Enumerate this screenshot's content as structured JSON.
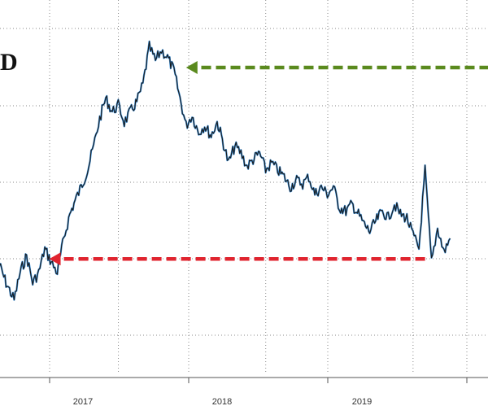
{
  "chart_data": {
    "type": "line",
    "title_fragment": "D",
    "xlabel": "",
    "ylabel": "",
    "x_range": [
      "2016-09",
      "2020-01"
    ],
    "x_tick_labels": [
      "2017",
      "2018",
      "2019"
    ],
    "x_tick_dates": [
      "2017-01-01",
      "2018-01-01",
      "2019-01-01"
    ],
    "grid": true,
    "y_scale": "unlabeled",
    "series": [
      {
        "color": "#1a1a1a",
        "highlight_color": "#3a8fd9",
        "points": [
          [
            "2016-09-01",
            0.28
          ],
          [
            "2016-09-20",
            0.22
          ],
          [
            "2016-10-10",
            0.17
          ],
          [
            "2016-10-25",
            0.25
          ],
          [
            "2016-11-10",
            0.3
          ],
          [
            "2016-11-25",
            0.22
          ],
          [
            "2016-12-10",
            0.25
          ],
          [
            "2016-12-25",
            0.32
          ],
          [
            "2017-01-10",
            0.28
          ],
          [
            "2017-01-25",
            0.25
          ],
          [
            "2017-02-10",
            0.35
          ],
          [
            "2017-02-25",
            0.42
          ],
          [
            "2017-03-10",
            0.46
          ],
          [
            "2017-03-25",
            0.5
          ],
          [
            "2017-04-10",
            0.55
          ],
          [
            "2017-04-25",
            0.62
          ],
          [
            "2017-05-10",
            0.7
          ],
          [
            "2017-05-25",
            0.76
          ],
          [
            "2017-06-10",
            0.72
          ],
          [
            "2017-06-25",
            0.74
          ],
          [
            "2017-07-10",
            0.69
          ],
          [
            "2017-07-25",
            0.72
          ],
          [
            "2017-08-10",
            0.75
          ],
          [
            "2017-08-25",
            0.8
          ],
          [
            "2017-09-10",
            0.91
          ],
          [
            "2017-09-25",
            0.87
          ],
          [
            "2017-10-10",
            0.9
          ],
          [
            "2017-10-25",
            0.88
          ],
          [
            "2017-11-10",
            0.84
          ],
          [
            "2017-11-25",
            0.76
          ],
          [
            "2017-12-10",
            0.68
          ],
          [
            "2017-12-25",
            0.71
          ],
          [
            "2018-01-10",
            0.66
          ],
          [
            "2018-01-25",
            0.68
          ],
          [
            "2018-02-10",
            0.65
          ],
          [
            "2018-02-25",
            0.69
          ],
          [
            "2018-03-10",
            0.64
          ],
          [
            "2018-03-25",
            0.57
          ],
          [
            "2018-04-10",
            0.62
          ],
          [
            "2018-04-25",
            0.6
          ],
          [
            "2018-05-10",
            0.56
          ],
          [
            "2018-05-25",
            0.58
          ],
          [
            "2018-06-10",
            0.6
          ],
          [
            "2018-06-25",
            0.55
          ],
          [
            "2018-07-10",
            0.57
          ],
          [
            "2018-07-25",
            0.55
          ],
          [
            "2018-08-10",
            0.53
          ],
          [
            "2018-08-25",
            0.5
          ],
          [
            "2018-09-10",
            0.52
          ],
          [
            "2018-09-25",
            0.51
          ],
          [
            "2018-10-10",
            0.53
          ],
          [
            "2018-10-25",
            0.48
          ],
          [
            "2018-11-10",
            0.5
          ],
          [
            "2018-11-25",
            0.48
          ],
          [
            "2018-12-10",
            0.5
          ],
          [
            "2018-12-25",
            0.44
          ],
          [
            "2019-01-10",
            0.43
          ],
          [
            "2019-01-25",
            0.45
          ],
          [
            "2019-02-10",
            0.42
          ],
          [
            "2019-02-25",
            0.39
          ],
          [
            "2019-03-10",
            0.37
          ],
          [
            "2019-03-25",
            0.4
          ],
          [
            "2019-04-10",
            0.43
          ],
          [
            "2019-04-25",
            0.41
          ],
          [
            "2019-05-10",
            0.45
          ],
          [
            "2019-05-25",
            0.42
          ],
          [
            "2019-06-10",
            0.41
          ],
          [
            "2019-06-25",
            0.36
          ],
          [
            "2019-07-10",
            0.32
          ],
          [
            "2019-07-25",
            0.55
          ],
          [
            "2019-08-10",
            0.28
          ],
          [
            "2019-08-25",
            0.38
          ],
          [
            "2019-09-10",
            0.31
          ],
          [
            "2019-09-25",
            0.35
          ]
        ]
      }
    ],
    "annotations": [
      {
        "kind": "arrow",
        "color": "#5a8a1e",
        "style": "dashed",
        "pointing": "left",
        "from_x": "2019-12-31",
        "to_x": "2017-12-10",
        "at_y": 0.85
      },
      {
        "kind": "arrow",
        "color": "#e0242f",
        "style": "dashed",
        "pointing": "left",
        "from_x": "2019-07-25",
        "to_x": "2017-01-05",
        "at_y": 0.29
      }
    ]
  }
}
